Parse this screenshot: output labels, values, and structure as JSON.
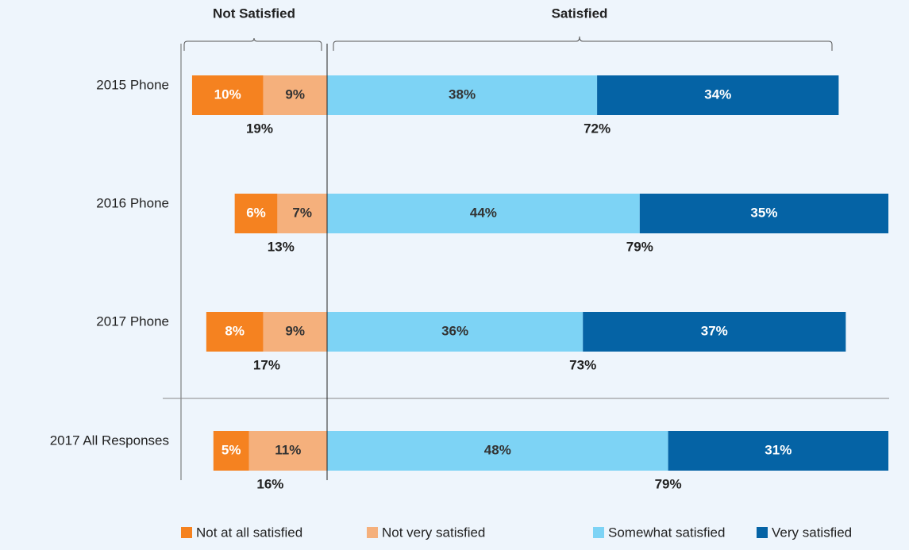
{
  "chart_data": {
    "type": "diverging_bar",
    "group_labels": {
      "negative": "Not Satisfied",
      "positive": "Satisfied"
    },
    "categories": [
      "2015 Phone",
      "2016 Phone",
      "2017 Phone",
      "2017 All Responses"
    ],
    "series": [
      {
        "name": "Not at all satisfied",
        "color": "#f58220",
        "label_color": "#ffffff",
        "side": "negative",
        "values": [
          10,
          6,
          8,
          5
        ],
        "value_labels": [
          "10%",
          "6%",
          "8%",
          "5%"
        ]
      },
      {
        "name": "Not very satisfied",
        "color": "#f5b07c",
        "label_color": "#333333",
        "side": "negative",
        "values": [
          9,
          7,
          9,
          11
        ],
        "value_labels": [
          "9%",
          "7%",
          "9%",
          "11%"
        ]
      },
      {
        "name": "Somewhat satisfied",
        "color": "#7dd3f5",
        "label_color": "#333333",
        "side": "positive",
        "values": [
          38,
          44,
          36,
          48
        ],
        "value_labels": [
          "38%",
          "44%",
          "36%",
          "48%"
        ]
      },
      {
        "name": "Very satisfied",
        "color": "#0563a5",
        "label_color": "#ffffff",
        "side": "positive",
        "values": [
          34,
          35,
          37,
          31
        ],
        "value_labels": [
          "34%",
          "35%",
          "37%",
          "31%"
        ]
      }
    ],
    "totals": {
      "negative": {
        "values": [
          19,
          13,
          17,
          16
        ],
        "value_labels": [
          "19%",
          "13%",
          "17%",
          "16%"
        ]
      },
      "positive": {
        "values": [
          72,
          79,
          73,
          79
        ],
        "value_labels": [
          "72%",
          "79%",
          "73%",
          "79%"
        ]
      }
    }
  }
}
